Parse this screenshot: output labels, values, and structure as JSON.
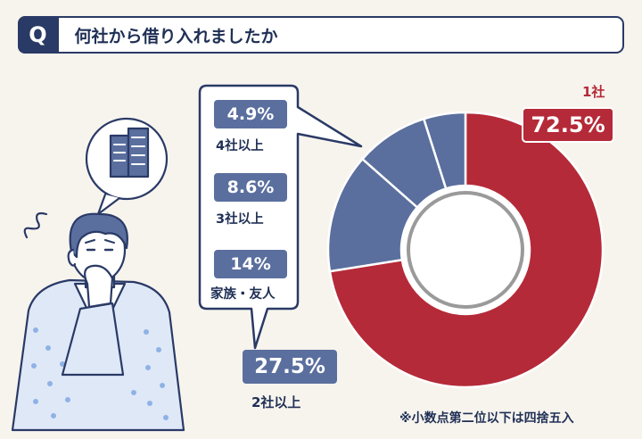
{
  "header": {
    "badge": "Q",
    "question": "何社から借り入れましたか"
  },
  "chart_data": {
    "type": "pie",
    "style": "donut",
    "slices": [
      {
        "label": "1社",
        "value": 72.5,
        "display": "72.5%",
        "color": "#b52a38"
      },
      {
        "label": "2社以上",
        "value": 27.5,
        "display": "27.5%",
        "color": "#5a6f9e",
        "breakdown": [
          {
            "label": "家族・友人",
            "value": 14,
            "display": "14%"
          },
          {
            "label": "3社以上",
            "value": 8.6,
            "display": "8.6%"
          },
          {
            "label": "4社以上",
            "value": 4.9,
            "display": "4.9%"
          }
        ]
      }
    ]
  },
  "note": "※小数点第二位以下は四捨五入",
  "colors": {
    "accent": "#b52a38",
    "secondary": "#5a6f9e",
    "navy": "#2a3a66",
    "background": "#f7f4ee"
  },
  "illustration": {
    "subject": "thinking-man-icon",
    "thought": "building-icon"
  }
}
